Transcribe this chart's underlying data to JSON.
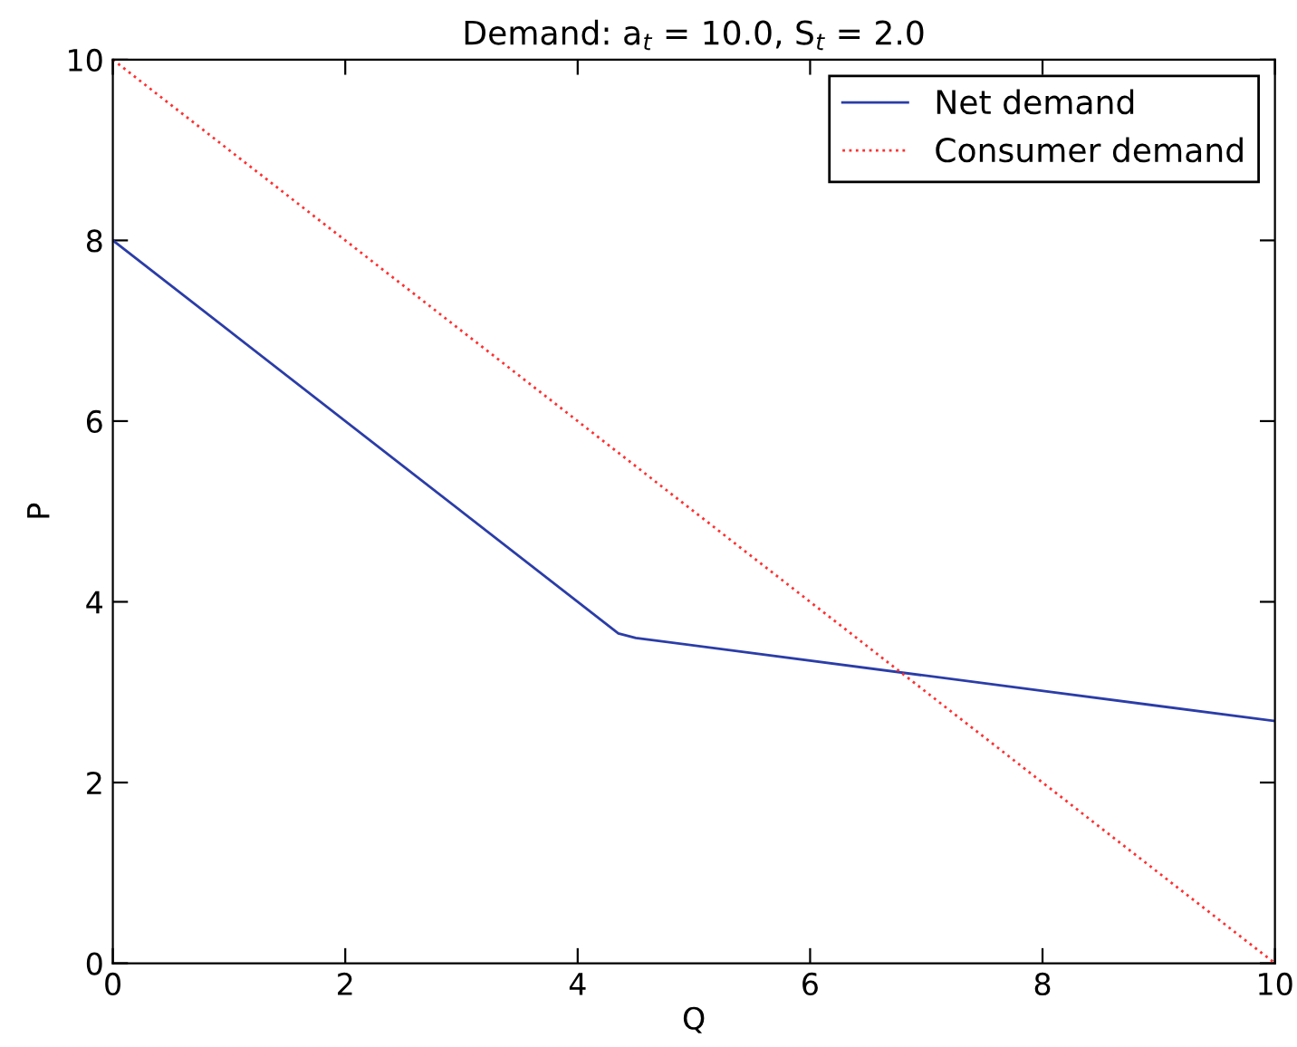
{
  "chart_data": {
    "type": "line",
    "title": "Demand: a$_{t}$ = 10.0, S$_{t}$ = 2.0",
    "xlabel": "Q",
    "ylabel": "P",
    "xlim": [
      0,
      10
    ],
    "ylim": [
      0,
      10
    ],
    "xticks": [
      0,
      2,
      4,
      6,
      8,
      10
    ],
    "yticks": [
      0,
      2,
      4,
      6,
      8,
      10
    ],
    "grid": false,
    "legend": "top right",
    "series": [
      {
        "name": "Net demand",
        "color": "#2b3da8",
        "line_style": "solid",
        "x": [
          0,
          4.35,
          4.5,
          10
        ],
        "values": [
          8,
          3.65,
          3.6,
          2.68
        ]
      },
      {
        "name": "Consumer demand",
        "color": "#ff3030",
        "line_style": "dotted",
        "x": [
          0,
          10
        ],
        "values": [
          10,
          0
        ]
      }
    ]
  }
}
